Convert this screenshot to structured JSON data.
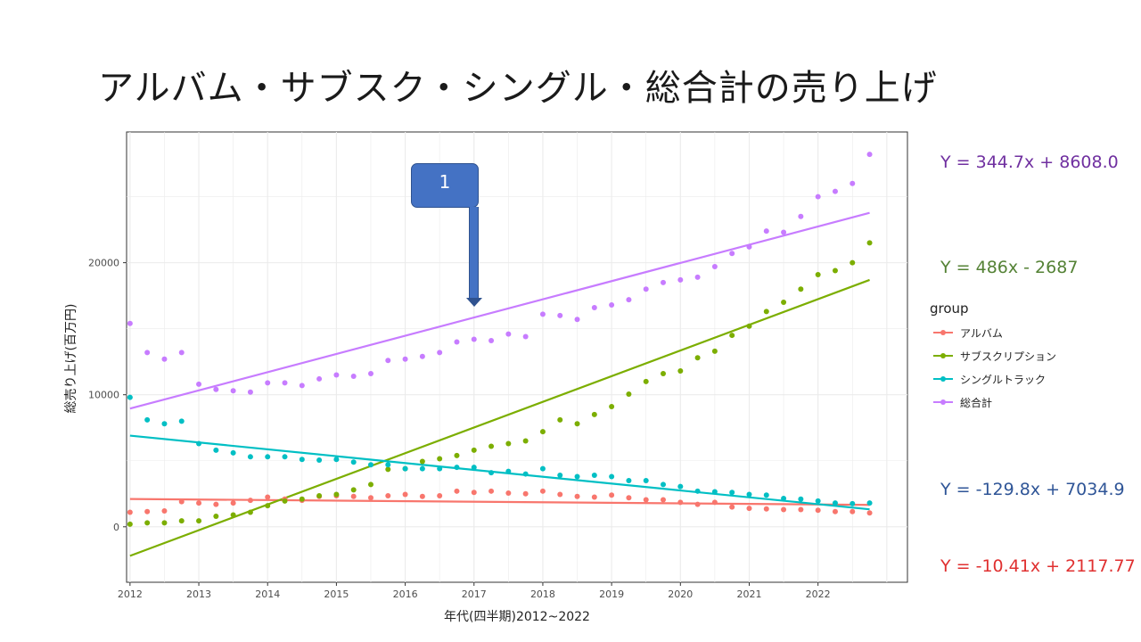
{
  "slide": {
    "title": "アルバム・サブスク・シングル・総合計の売り上げ"
  },
  "callout": {
    "label": "1",
    "color": "#4472c4"
  },
  "equations": {
    "total": {
      "text": "Y = 344.7x + 8608.0",
      "color": "#7030a0"
    },
    "subscription": {
      "text": "Y = 486x - 2687",
      "color": "#548235"
    },
    "single": {
      "text": "Y = -129.8x + 7034.9",
      "color": "#2f5597"
    },
    "album": {
      "text": "Y = -10.41x + 2117.77",
      "color": "#e03030"
    }
  },
  "legend": {
    "title": "group",
    "items": [
      "アルバム",
      "サブスクリプション",
      "シングルトラック",
      "総合計"
    ]
  },
  "chart_data": {
    "type": "scatter",
    "xlabel": "年代(四半期)2012~2022",
    "ylabel": "総売り上げ(百万円)",
    "x_ticks": [
      "2012",
      "2013",
      "2014",
      "2015",
      "2016",
      "2017",
      "2018",
      "2019",
      "2020",
      "2021",
      "2022"
    ],
    "y_ticks": [
      0,
      10000,
      20000
    ],
    "xlim": [
      2011.95,
      2023.3
    ],
    "ylim": [
      -4200,
      29900
    ],
    "grid": true,
    "legend_position": "right",
    "x": [
      2012.0,
      2012.25,
      2012.5,
      2012.75,
      2013.0,
      2013.25,
      2013.5,
      2013.75,
      2014.0,
      2014.25,
      2014.5,
      2014.75,
      2015.0,
      2015.25,
      2015.5,
      2015.75,
      2016.0,
      2016.25,
      2016.5,
      2016.75,
      2017.0,
      2017.25,
      2017.5,
      2017.75,
      2018.0,
      2018.25,
      2018.5,
      2018.75,
      2019.0,
      2019.25,
      2019.5,
      2019.75,
      2020.0,
      2020.25,
      2020.5,
      2020.75,
      2021.0,
      2021.25,
      2021.5,
      2021.75,
      2022.0,
      2022.25,
      2022.5,
      2022.75
    ],
    "series": [
      {
        "name": "アルバム",
        "color": "#f8766d",
        "values": [
          1100,
          1150,
          1200,
          1900,
          1800,
          1700,
          1800,
          2000,
          2250,
          2100,
          2000,
          2300,
          2350,
          2300,
          2200,
          2350,
          2450,
          2300,
          2350,
          2700,
          2600,
          2700,
          2550,
          2500,
          2700,
          2450,
          2300,
          2250,
          2400,
          2200,
          2050,
          2050,
          1850,
          1700,
          1850,
          1500,
          1400,
          1350,
          1300,
          1300,
          1250,
          1150,
          1150,
          1050
        ],
        "trend": [
          2117.77,
          -10.41
        ]
      },
      {
        "name": "サブスクリプション",
        "color": "#7cae00",
        "values": [
          200,
          300,
          300,
          450,
          450,
          800,
          900,
          1100,
          1600,
          1950,
          2100,
          2350,
          2450,
          2800,
          3200,
          4350,
          4400,
          4950,
          5150,
          5400,
          5800,
          6100,
          6300,
          6500,
          7200,
          8100,
          7800,
          8500,
          9100,
          10050,
          11000,
          11600,
          11800,
          12800,
          13300,
          14500,
          15200,
          16300,
          17000,
          18000,
          19100,
          19400,
          20000,
          21500
        ],
        "trend": [
          -2687,
          486
        ]
      },
      {
        "name": "シングルトラック",
        "color": "#00bfc4",
        "values": [
          9800,
          8100,
          7800,
          8000,
          6300,
          5800,
          5600,
          5300,
          5300,
          5300,
          5100,
          5050,
          5100,
          4900,
          4700,
          4700,
          4400,
          4400,
          4400,
          4500,
          4500,
          4100,
          4200,
          4000,
          4400,
          3900,
          3800,
          3900,
          3800,
          3500,
          3500,
          3200,
          3050,
          2700,
          2650,
          2600,
          2450,
          2400,
          2150,
          2100,
          1950,
          1800,
          1750,
          1800
        ],
        "trend": [
          7034.9,
          -129.8
        ]
      },
      {
        "name": "総合計",
        "color": "#c77cff",
        "values": [
          15400,
          13200,
          12700,
          13200,
          10800,
          10400,
          10300,
          10200,
          10900,
          10900,
          10700,
          11200,
          11500,
          11400,
          11600,
          12600,
          12700,
          12900,
          13200,
          14000,
          14200,
          14100,
          14600,
          14400,
          16100,
          16000,
          15700,
          16600,
          16800,
          17200,
          18000,
          18500,
          18700,
          18900,
          19700,
          20700,
          21200,
          22400,
          22300,
          23500,
          25000,
          25400,
          26000,
          28200
        ],
        "trend": [
          8608.0,
          344.7
        ]
      }
    ]
  }
}
